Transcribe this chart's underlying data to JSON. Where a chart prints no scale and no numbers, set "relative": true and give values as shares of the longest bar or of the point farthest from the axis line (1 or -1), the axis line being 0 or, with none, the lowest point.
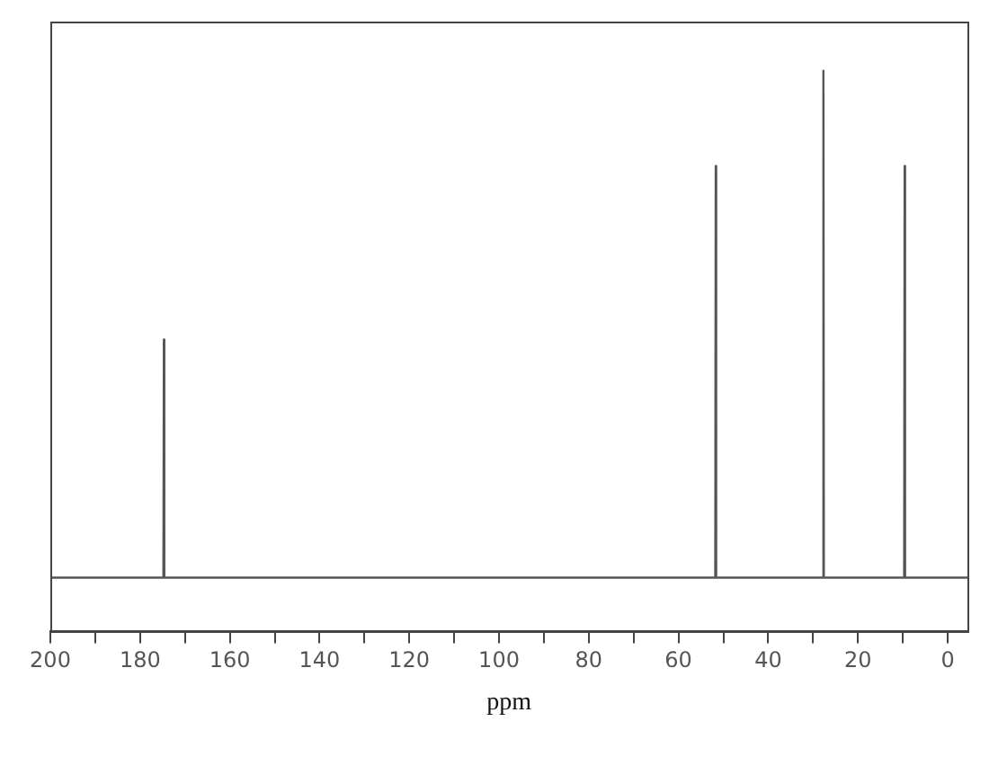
{
  "chart_data": {
    "type": "line",
    "relative": true,
    "xlabel": "ppm",
    "xlim": [
      200,
      -4.4
    ],
    "xticks": [
      200,
      {
        "value": 190,
        "label": null
      },
      180,
      {
        "value": 170,
        "label": null
      },
      160,
      {
        "value": 150,
        "label": null
      },
      140,
      {
        "value": 130,
        "label": null
      },
      120,
      {
        "value": 110,
        "label": null
      },
      100,
      {
        "value": 90,
        "label": null
      },
      80,
      {
        "value": 70,
        "label": null
      },
      60,
      {
        "value": 50,
        "label": null
      },
      40,
      {
        "value": 30,
        "label": null
      },
      20,
      {
        "value": 10,
        "label": null
      },
      0
    ],
    "series": [
      {
        "color": "#555555",
        "x": [
          200,
          174.8,
          174.7,
          174.6,
          51.8,
          51.7,
          51.6,
          27.8,
          27.7,
          27.6,
          9.7,
          9.6,
          9.5,
          -4.4
        ],
        "values": [
          0.095,
          0.095,
          0.52,
          0.095,
          0.095,
          0.83,
          0.095,
          0.095,
          1,
          0.095,
          0.095,
          0.83,
          0.095,
          0.095
        ]
      }
    ],
    "grid": false,
    "legend": false,
    "marker": "none",
    "line_style": "solid"
  }
}
